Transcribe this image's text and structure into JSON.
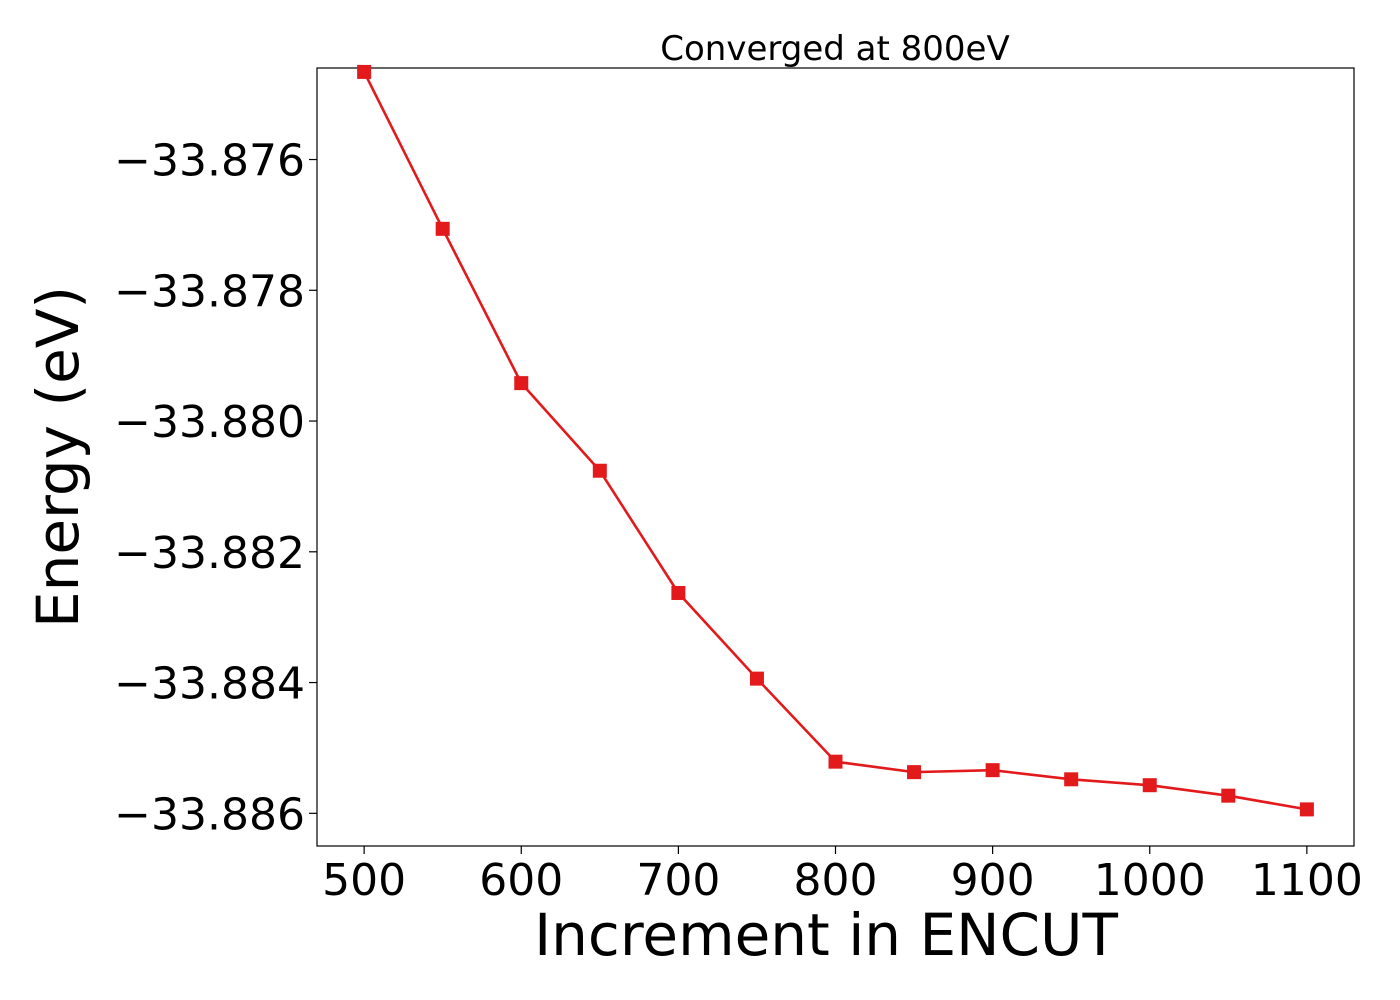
{
  "chart_data": {
    "type": "line",
    "title": "Converged at 800eV",
    "xlabel": "Increment in ENCUT",
    "ylabel": "Energy (eV)",
    "xlim": [
      470,
      1130
    ],
    "ylim": [
      -33.8865,
      -33.8746
    ],
    "xticks": [
      500,
      600,
      700,
      800,
      900,
      1000,
      1100
    ],
    "yticks": [
      -33.876,
      -33.878,
      -33.88,
      -33.882,
      -33.884,
      -33.886
    ],
    "ytick_labels": [
      "−33.876",
      "−33.878",
      "−33.880",
      "−33.882",
      "−33.884",
      "−33.886"
    ],
    "grid": false,
    "series": [
      {
        "color": "#e31a1c",
        "marker": "square",
        "x": [
          500,
          550,
          600,
          650,
          700,
          750,
          800,
          850,
          900,
          950,
          1000,
          1050,
          1100
        ],
        "y": [
          -33.87466,
          -33.87706,
          -33.87942,
          -33.88076,
          -33.88263,
          -33.88394,
          -33.88521,
          -33.88537,
          -33.88534,
          -33.88548,
          -33.88557,
          -33.88573,
          -33.88594
        ]
      }
    ]
  }
}
